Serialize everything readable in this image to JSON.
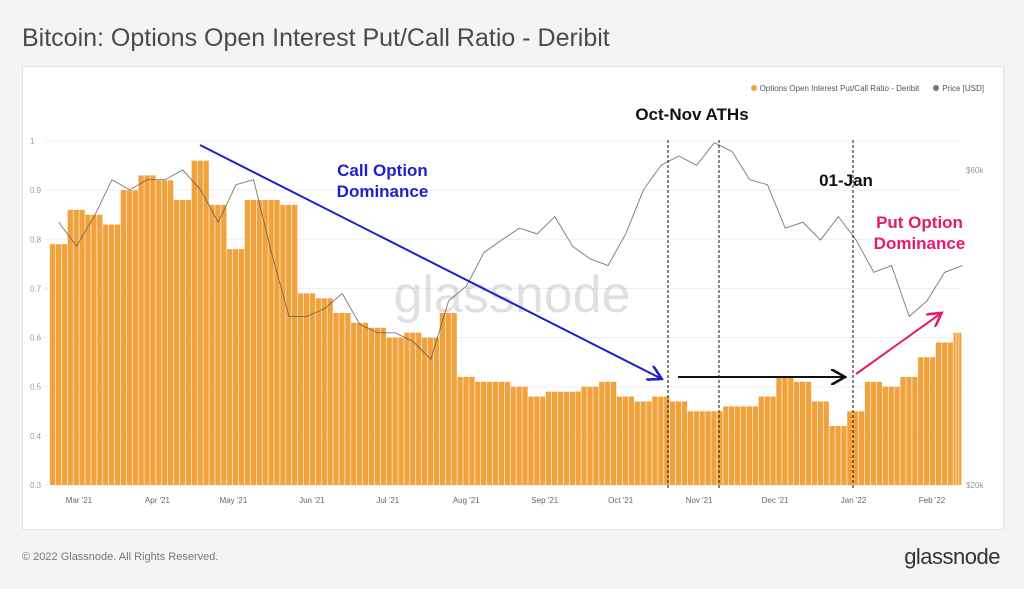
{
  "title": "Bitcoin: Options Open Interest Put/Call Ratio - Deribit",
  "footer": {
    "copyright": "© 2022 Glassnode. All Rights Reserved.",
    "logo": "glassnode"
  },
  "watermark": "glassnode",
  "annotations": {
    "call": "Call Option Dominance",
    "aths": "Oct-Nov ATHs",
    "jan": "01-Jan",
    "put": "Put Option Dominance"
  },
  "colors": {
    "bars": "#f2a23c",
    "price": "#555555",
    "call": "#1f1fcc",
    "put": "#e8196b"
  },
  "chart_data": {
    "type": "bar",
    "title": "Bitcoin: Options Open Interest Put/Call Ratio - Deribit",
    "legend": {
      "placement": "top-right",
      "entries": [
        "Options Open Interest Put/Call Ratio - Deribit",
        "Price [USD]"
      ]
    },
    "x_ticks": [
      "Mar '21",
      "Apr '21",
      "May '21",
      "Jun '21",
      "Jul '21",
      "Aug '21",
      "Sep '21",
      "Oct '21",
      "Nov '21",
      "Dec '21",
      "Jan '22",
      "Feb '22"
    ],
    "x_tick_dates": [
      "2021-03-01",
      "2021-04-01",
      "2021-05-01",
      "2021-06-01",
      "2021-07-01",
      "2021-08-01",
      "2021-09-01",
      "2021-10-01",
      "2021-11-01",
      "2021-12-01",
      "2022-01-01",
      "2022-02-01"
    ],
    "y_left": {
      "ticks": [
        "0.3",
        "0.4",
        "0.5",
        "0.6",
        "0.7",
        "0.8",
        "0.9",
        "1"
      ],
      "range": [
        0.3,
        1.0
      ]
    },
    "y_right": {
      "ticks": [
        "$20k",
        "$60k"
      ],
      "scale": "log",
      "tick_values": [
        20000,
        60000
      ]
    },
    "grid": true,
    "dates": [
      "2021-02-21",
      "2021-02-28",
      "2021-03-07",
      "2021-03-14",
      "2021-03-21",
      "2021-03-28",
      "2021-04-04",
      "2021-04-11",
      "2021-04-18",
      "2021-04-25",
      "2021-05-02",
      "2021-05-09",
      "2021-05-16",
      "2021-05-23",
      "2021-05-30",
      "2021-06-06",
      "2021-06-13",
      "2021-06-20",
      "2021-06-27",
      "2021-07-04",
      "2021-07-11",
      "2021-07-18",
      "2021-07-25",
      "2021-08-01",
      "2021-08-08",
      "2021-08-15",
      "2021-08-22",
      "2021-08-29",
      "2021-09-05",
      "2021-09-12",
      "2021-09-19",
      "2021-09-26",
      "2021-10-03",
      "2021-10-10",
      "2021-10-17",
      "2021-10-24",
      "2021-10-31",
      "2021-11-07",
      "2021-11-14",
      "2021-11-21",
      "2021-11-28",
      "2021-12-05",
      "2021-12-12",
      "2021-12-19",
      "2021-12-26",
      "2022-01-02",
      "2022-01-09",
      "2022-01-16",
      "2022-01-23",
      "2022-01-30",
      "2022-02-06",
      "2022-02-13"
    ],
    "series": [
      {
        "name": "Options Open Interest Put/Call Ratio - Deribit",
        "type": "bar",
        "values": [
          0.79,
          0.86,
          0.85,
          0.83,
          0.9,
          0.93,
          0.92,
          0.88,
          0.96,
          0.87,
          0.78,
          0.88,
          0.88,
          0.87,
          0.69,
          0.68,
          0.65,
          0.63,
          0.62,
          0.6,
          0.61,
          0.6,
          0.65,
          0.52,
          0.51,
          0.51,
          0.5,
          0.48,
          0.49,
          0.49,
          0.5,
          0.51,
          0.48,
          0.47,
          0.48,
          0.47,
          0.45,
          0.45,
          0.46,
          0.46,
          0.48,
          0.52,
          0.51,
          0.47,
          0.42,
          0.45,
          0.51,
          0.5,
          0.52,
          0.56,
          0.59,
          0.61
        ]
      },
      {
        "name": "Price [USD]",
        "type": "line",
        "values": [
          50000,
          46000,
          51000,
          58000,
          56000,
          58000,
          58000,
          60000,
          56000,
          50000,
          57000,
          58000,
          45000,
          36000,
          36000,
          37000,
          39000,
          35000,
          34000,
          34000,
          33000,
          31000,
          38000,
          40000,
          45000,
          47000,
          49000,
          48000,
          51000,
          46000,
          44000,
          43000,
          48000,
          56000,
          61000,
          63000,
          61000,
          66000,
          64000,
          58000,
          57000,
          49000,
          50000,
          47000,
          51000,
          47000,
          42000,
          43000,
          36000,
          38000,
          42000,
          43000
        ]
      }
    ]
  }
}
